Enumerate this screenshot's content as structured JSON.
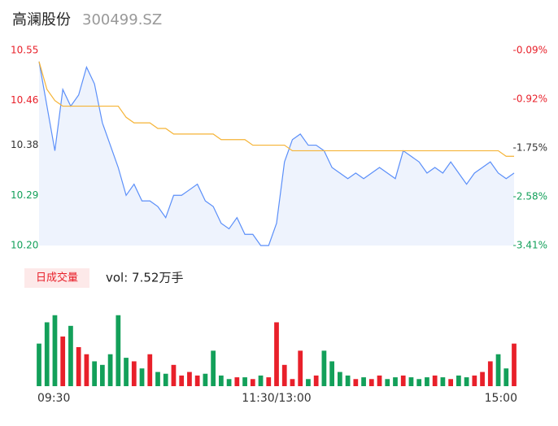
{
  "header": {
    "name": "高澜股份",
    "code": "300499.SZ"
  },
  "chart_data": [
    {
      "type": "line",
      "xlim": [
        0,
        240
      ],
      "x": [
        0,
        4,
        8,
        12,
        16,
        20,
        24,
        28,
        32,
        36,
        40,
        44,
        48,
        52,
        56,
        60,
        64,
        68,
        72,
        76,
        80,
        84,
        88,
        92,
        96,
        100,
        104,
        108,
        112,
        116,
        120,
        124,
        128,
        132,
        136,
        140,
        144,
        148,
        152,
        156,
        160,
        164,
        168,
        172,
        176,
        180,
        184,
        188,
        192,
        196,
        200,
        204,
        208,
        212,
        216,
        220,
        224,
        228,
        232,
        236,
        240
      ],
      "series": [
        {
          "name": "price",
          "color": "#5b8ff9",
          "values": [
            10.53,
            10.45,
            10.37,
            10.48,
            10.45,
            10.47,
            10.52,
            10.49,
            10.42,
            10.38,
            10.34,
            10.29,
            10.31,
            10.28,
            10.28,
            10.27,
            10.25,
            10.29,
            10.29,
            10.3,
            10.31,
            10.28,
            10.27,
            10.24,
            10.23,
            10.25,
            10.22,
            10.22,
            10.2,
            10.2,
            10.24,
            10.35,
            10.39,
            10.4,
            10.38,
            10.38,
            10.37,
            10.34,
            10.33,
            10.32,
            10.33,
            10.32,
            10.33,
            10.34,
            10.33,
            10.32,
            10.37,
            10.36,
            10.35,
            10.33,
            10.34,
            10.33,
            10.35,
            10.33,
            10.31,
            10.33,
            10.34,
            10.35,
            10.33,
            10.32,
            10.33
          ]
        },
        {
          "name": "average",
          "color": "#f5b335",
          "values": [
            10.53,
            10.48,
            10.46,
            10.45,
            10.45,
            10.45,
            10.45,
            10.45,
            10.45,
            10.45,
            10.45,
            10.43,
            10.42,
            10.42,
            10.42,
            10.41,
            10.41,
            10.4,
            10.4,
            10.4,
            10.4,
            10.4,
            10.4,
            10.39,
            10.39,
            10.39,
            10.39,
            10.38,
            10.38,
            10.38,
            10.38,
            10.38,
            10.37,
            10.37,
            10.37,
            10.37,
            10.37,
            10.37,
            10.37,
            10.37,
            10.37,
            10.37,
            10.37,
            10.37,
            10.37,
            10.37,
            10.37,
            10.37,
            10.37,
            10.37,
            10.37,
            10.37,
            10.37,
            10.37,
            10.37,
            10.37,
            10.37,
            10.37,
            10.37,
            10.36,
            10.36
          ]
        }
      ],
      "ylim": [
        10.2,
        10.55
      ],
      "yticks": [
        10.55,
        10.46,
        10.38,
        10.29,
        {
          "value": 10.2,
          "label": "10.20"
        }
      ],
      "y2lim": [
        -3.41,
        -0.09
      ],
      "y2ticks": [
        {
          "value": -0.09,
          "label": "-0.09%"
        },
        {
          "value": -0.92,
          "label": "-0.92%"
        },
        {
          "value": -1.75,
          "label": "-1.75%"
        },
        {
          "value": -2.58,
          "label": "-2.58%"
        },
        {
          "value": -3.41,
          "label": "-3.41%"
        }
      ],
      "tick_colors": [
        "#e8202a",
        "#e8202a",
        "#333333",
        "#13a05a",
        "#13a05a"
      ],
      "area_color": "#eef3fd"
    },
    {
      "type": "bar",
      "title": "日成交量",
      "annotation": "vol: 7.52万手",
      "xlim": [
        0,
        240
      ],
      "xticks": [
        {
          "value": 0,
          "label": "09:30"
        },
        {
          "value": 120,
          "label": "11:30/13:00"
        },
        {
          "value": 240,
          "label": "15:00"
        }
      ],
      "ylim": [
        0,
        2200
      ],
      "up_color": "#e8202a",
      "down_color": "#13a05a",
      "values": [
        1200,
        1800,
        2000,
        1400,
        1700,
        1100,
        900,
        700,
        600,
        900,
        2000,
        800,
        700,
        500,
        900,
        400,
        350,
        600,
        300,
        400,
        300,
        350,
        1000,
        300,
        200,
        250,
        250,
        200,
        300,
        250,
        1800,
        600,
        200,
        1000,
        200,
        300,
        1000,
        700,
        400,
        300,
        200,
        250,
        200,
        300,
        200,
        250,
        300,
        250,
        200,
        250,
        300,
        250,
        200,
        300,
        250,
        300,
        400,
        700,
        900,
        500,
        1200
      ]
    }
  ]
}
